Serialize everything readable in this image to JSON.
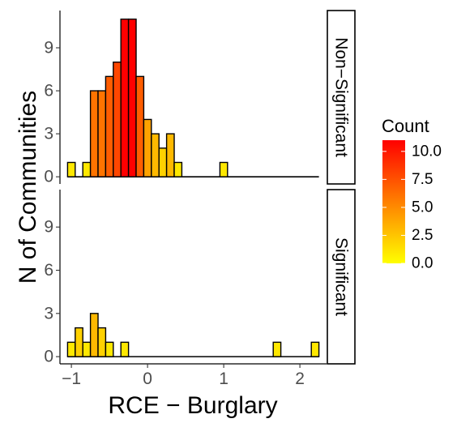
{
  "chart_data": {
    "type": "bar",
    "xlabel": "RCE − Burglary",
    "ylabel": "N of Communities",
    "x_ticks": [
      {
        "value": -1,
        "label": "−1"
      },
      {
        "value": 0,
        "label": "0"
      },
      {
        "value": 1,
        "label": "1"
      },
      {
        "value": 2,
        "label": "2"
      }
    ],
    "y_ticks": [
      {
        "value": 0,
        "label": "0"
      },
      {
        "value": 3,
        "label": "3"
      },
      {
        "value": 6,
        "label": "6"
      },
      {
        "value": 9,
        "label": "9"
      }
    ],
    "xlim": [
      -1.15,
      2.35
    ],
    "ylim": [
      -0.5,
      11.6
    ],
    "bin_width": 0.1,
    "grid": false,
    "legend_position": "right",
    "panels": [
      {
        "strip_label": "Non−Significant",
        "bins": [
          {
            "center": -1.0,
            "count": 1
          },
          {
            "center": -0.8,
            "count": 1
          },
          {
            "center": -0.7,
            "count": 6
          },
          {
            "center": -0.6,
            "count": 6
          },
          {
            "center": -0.5,
            "count": 7
          },
          {
            "center": -0.4,
            "count": 8
          },
          {
            "center": -0.3,
            "count": 11
          },
          {
            "center": -0.2,
            "count": 11
          },
          {
            "center": -0.1,
            "count": 7
          },
          {
            "center": 0.0,
            "count": 4
          },
          {
            "center": 0.1,
            "count": 3
          },
          {
            "center": 0.2,
            "count": 2
          },
          {
            "center": 0.3,
            "count": 3
          },
          {
            "center": 0.4,
            "count": 1
          },
          {
            "center": 1.0,
            "count": 1
          }
        ]
      },
      {
        "strip_label": "Significant",
        "bins": [
          {
            "center": -1.0,
            "count": 1
          },
          {
            "center": -0.9,
            "count": 2
          },
          {
            "center": -0.8,
            "count": 1
          },
          {
            "center": -0.7,
            "count": 3
          },
          {
            "center": -0.6,
            "count": 2
          },
          {
            "center": -0.5,
            "count": 1
          },
          {
            "center": -0.3,
            "count": 1
          },
          {
            "center": 1.7,
            "count": 1
          },
          {
            "center": 2.2,
            "count": 1
          }
        ]
      }
    ],
    "legend": {
      "title": "Count",
      "labels": [
        "10.0",
        "7.5",
        "5.0",
        "2.5",
        "0.0"
      ],
      "values": [
        10,
        7.5,
        5,
        2.5,
        0
      ],
      "range": [
        0,
        11
      ],
      "low_color": "#FFFF00",
      "high_color": "#FF0000"
    }
  },
  "colors": {
    "bar_outline": "#000000",
    "baseline": "#000000",
    "text": "#4D4D4D"
  }
}
